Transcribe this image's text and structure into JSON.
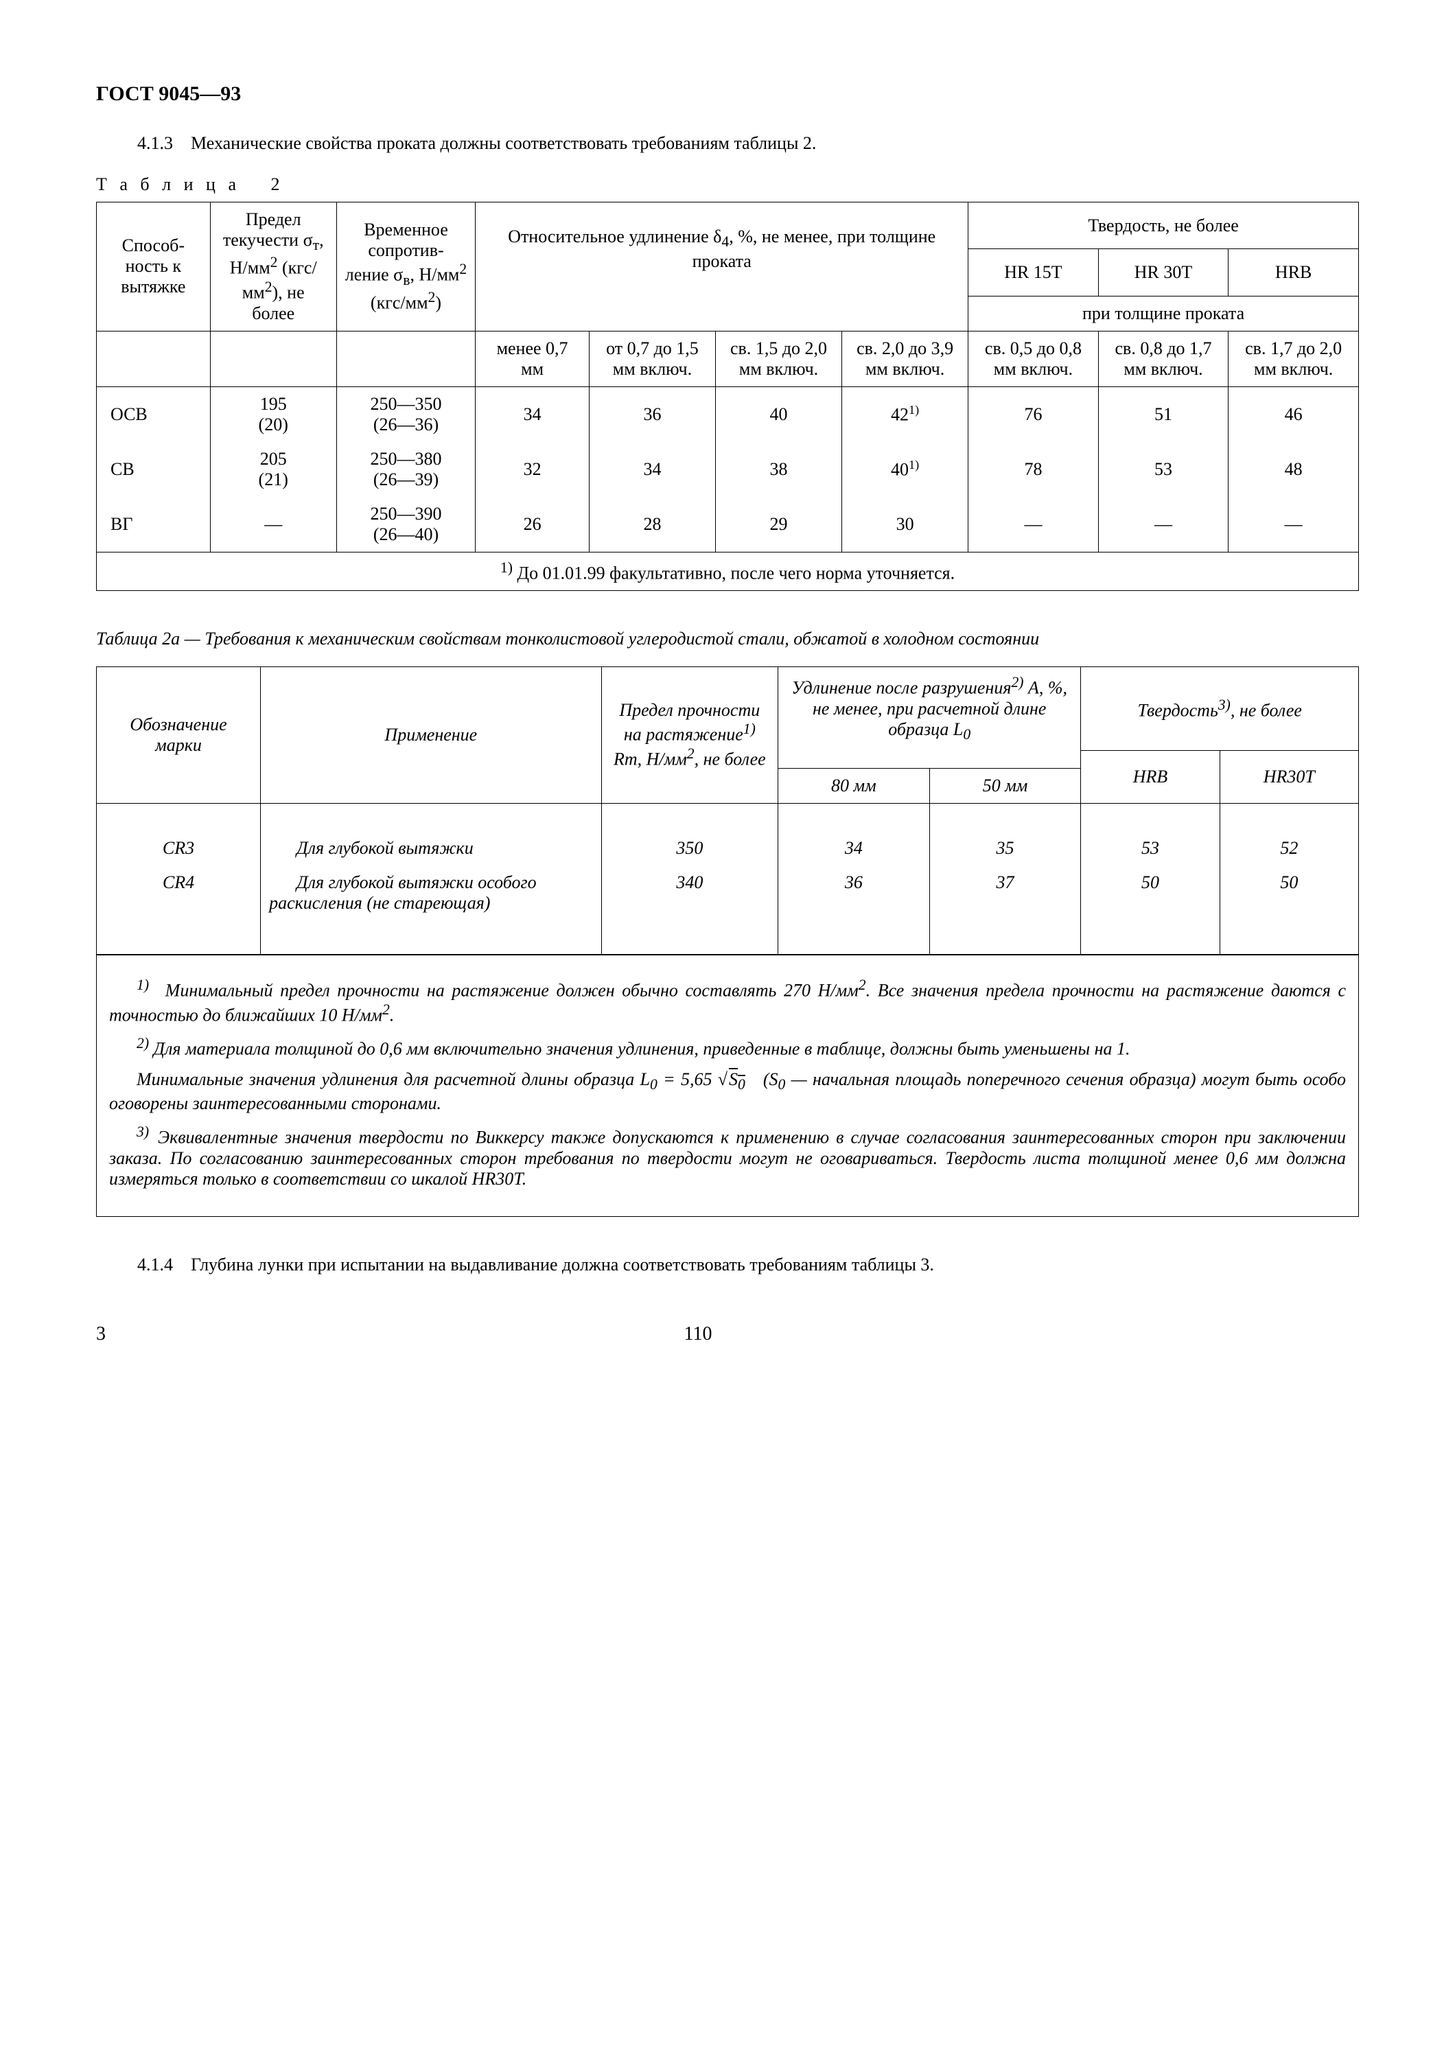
{
  "doc_header": "ГОСТ 9045—93",
  "para_413": "4.1.3 Механические свойства проката должны соответствовать требованиям таблицы 2.",
  "table2_label": "Т а б л и ц а  2",
  "table2": {
    "col_a": "Способ-\nность к вытяжке",
    "col_b": "Предел текучести σ<sub>т</sub>, Н/мм<sup>2</sup> (кгс/мм<sup>2</sup>), не более",
    "col_c": "Временное сопротив-\nление σ<sub>в</sub>, Н/мм<sup>2</sup> (кгс/мм<sup>2</sup>)",
    "group_elong": "Относительное удлинение δ<sub>4</sub>, %, не менее, при толщине проката",
    "group_hard": "Твердость, не более",
    "sub_hard": "при толщине проката",
    "elong_h1": "менее 0,7 мм",
    "elong_h2": "от 0,7 до 1,5 мм включ.",
    "elong_h3": "св. 1,5 до 2,0 мм включ.",
    "elong_h4": "св. 2,0 до 3,9 мм включ.",
    "hr15t": "HR 15T",
    "hr30t": "HR 30T",
    "hrb": "HRB",
    "hard_h1": "св. 0,5 до 0,8 мм включ.",
    "hard_h2": "св. 0,8 до 1,7 мм включ.",
    "hard_h3": "св. 1,7 до 2,0 мм включ.",
    "r1": {
      "a": "ОСВ",
      "b": "195",
      "b2": "(20)",
      "c": "250—350",
      "c2": "(26—36)",
      "e1": "34",
      "e2": "36",
      "e3": "40",
      "e4": "42",
      "e4sup": "1)",
      "h1": "76",
      "h2": "51",
      "h3": "46"
    },
    "r2": {
      "a": "СВ",
      "b": "205",
      "b2": "(21)",
      "c": "250—380",
      "c2": "(26—39)",
      "e1": "32",
      "e2": "34",
      "e3": "38",
      "e4": "40",
      "e4sup": "1)",
      "h1": "78",
      "h2": "53",
      "h3": "48"
    },
    "r3": {
      "a": "ВГ",
      "b": "—",
      "b2": "",
      "c": "250—390",
      "c2": "(26—40)",
      "e1": "26",
      "e2": "28",
      "e3": "29",
      "e4": "30",
      "h1": "—",
      "h2": "—",
      "h3": "—"
    },
    "footnote": "<sup>1)</sup> До 01.01.99 факультативно, после чего норма уточняется."
  },
  "table2a_caption": "Таблица 2а — Требования к механическим свойствам тонколистовой углеродистой стали, обжатой в холодном состоянии",
  "table2a": {
    "col_a": "Обозначение марки",
    "col_b": "Применение",
    "col_c": "Предел прочности на растяжение<sup>1)</sup> Rm, Н/мм<sup>2</sup>, не более",
    "group_elong": "Удлинение после разрушения<sup>2)</sup> A, %, не менее, при расчетной длине образца L<sub>0</sub>",
    "group_hard": "Твердость<sup>3)</sup>, не более",
    "e_h1": "80 мм",
    "e_h2": "50 мм",
    "h_h1": "HRB",
    "h_h2": "HR30T",
    "r1": {
      "a": "CR3",
      "b": "Для глубокой вытяжки",
      "c": "350",
      "e1": "34",
      "e2": "35",
      "h1": "53",
      "h2": "52"
    },
    "r2": {
      "a": "CR4",
      "b": "Для глубокой вытяжки особого раскисления (не стареющая)",
      "c": "340",
      "e1": "36",
      "e2": "37",
      "h1": "50",
      "h2": "50"
    }
  },
  "notes": {
    "n1": "<sup>1)</sup>  Минимальный предел прочности на растяжение должен обычно составлять 270 Н/мм<sup>2</sup>. Все значения предела прочности на растяжение даются с точностью до ближайших 10 Н/мм<sup>2</sup>.",
    "n2": "<sup>2)</sup> Для материала толщиной до 0,6 мм включительно значения удлинения, приведенные в таблице, должны быть уменьшены на 1.",
    "n2b": "Минимальные значения удлинения для расчетной длины образца L<sub>0</sub> = 5,65 √<span class=\"sqrt\">S<sub>0</sub></span> (S<sub>0</sub> — начальная площадь поперечного сечения образца) могут быть особо оговорены заинтересованными сторонами.",
    "n3": "<sup>3)</sup> Эквивалентные значения твердости по Виккерсу также допускаются к применению в случае согласования заинтересованных сторон при заключении заказа. По согласованию заинтересованных сторон требования по твердости могут не оговариваться. Твердость листа толщиной менее 0,6 мм должна измеряться только в соответствии со шкалой HR30T."
  },
  "para_414": "4.1.4 Глубина лунки при испытании на выдавливание должна соответствовать требованиям таблицы 3.",
  "page_left": "3",
  "page_center": "110"
}
